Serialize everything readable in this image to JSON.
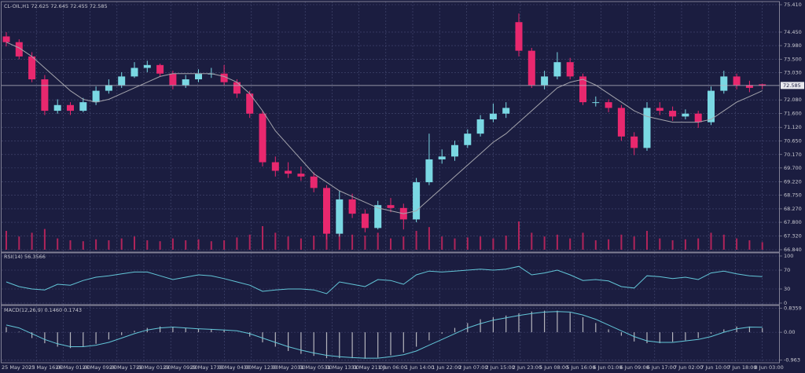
{
  "chart_data": {
    "type": "candlestick",
    "symbol": "CL-OIL,H1",
    "ohlc": [
      [
        74.3,
        74.45,
        73.95,
        74.1
      ],
      [
        74.1,
        74.2,
        73.5,
        73.6
      ],
      [
        73.6,
        73.75,
        72.7,
        72.8
      ],
      [
        72.8,
        72.95,
        71.55,
        71.7
      ],
      [
        71.7,
        72.1,
        71.6,
        71.9
      ],
      [
        71.9,
        72.0,
        71.55,
        71.7
      ],
      [
        71.7,
        72.15,
        71.65,
        72.0
      ],
      [
        72.0,
        72.55,
        71.9,
        72.4
      ],
      [
        72.4,
        72.8,
        72.3,
        72.6
      ],
      [
        72.6,
        73.05,
        72.5,
        72.9
      ],
      [
        72.9,
        73.4,
        72.85,
        73.2
      ],
      [
        73.2,
        73.45,
        73.05,
        73.3
      ],
      [
        73.3,
        73.35,
        72.9,
        73.0
      ],
      [
        73.0,
        73.1,
        72.45,
        72.6
      ],
      [
        72.6,
        72.95,
        72.5,
        72.8
      ],
      [
        72.8,
        73.15,
        72.7,
        73.0
      ],
      [
        73.0,
        73.2,
        72.85,
        73.0
      ],
      [
        73.0,
        73.3,
        72.6,
        72.7
      ],
      [
        72.7,
        72.8,
        72.15,
        72.3
      ],
      [
        72.3,
        72.4,
        71.45,
        71.6
      ],
      [
        71.6,
        71.7,
        69.75,
        69.9
      ],
      [
        69.9,
        70.1,
        69.4,
        69.6
      ],
      [
        69.6,
        69.9,
        69.35,
        69.5
      ],
      [
        69.5,
        69.75,
        69.25,
        69.4
      ],
      [
        69.4,
        69.55,
        68.85,
        69.0
      ],
      [
        69.0,
        69.1,
        67.2,
        67.4
      ],
      [
        67.4,
        68.9,
        67.3,
        68.6
      ],
      [
        68.6,
        68.8,
        67.95,
        68.1
      ],
      [
        68.1,
        68.25,
        67.45,
        67.6
      ],
      [
        67.6,
        68.55,
        67.55,
        68.4
      ],
      [
        68.4,
        68.65,
        68.15,
        68.3
      ],
      [
        68.3,
        68.45,
        67.55,
        67.9
      ],
      [
        67.9,
        69.35,
        67.8,
        69.2
      ],
      [
        69.2,
        70.9,
        69.1,
        70.0
      ],
      [
        70.0,
        70.35,
        69.85,
        70.1
      ],
      [
        70.1,
        70.65,
        69.95,
        70.5
      ],
      [
        70.5,
        71.05,
        70.4,
        70.9
      ],
      [
        70.9,
        71.55,
        70.8,
        71.4
      ],
      [
        71.4,
        71.95,
        71.3,
        71.6
      ],
      [
        71.6,
        72.0,
        71.45,
        71.8
      ],
      [
        74.8,
        75.1,
        73.6,
        73.8
      ],
      [
        73.8,
        73.9,
        72.5,
        72.6
      ],
      [
        72.6,
        73.1,
        72.45,
        72.9
      ],
      [
        72.9,
        73.75,
        72.8,
        73.4
      ],
      [
        73.4,
        73.55,
        72.8,
        72.9
      ],
      [
        72.9,
        73.0,
        71.9,
        72.0
      ],
      [
        72.0,
        72.2,
        71.85,
        72.0
      ],
      [
        72.0,
        72.1,
        71.65,
        71.8
      ],
      [
        71.8,
        71.9,
        70.65,
        70.8
      ],
      [
        70.8,
        70.95,
        70.15,
        70.4
      ],
      [
        70.4,
        72.0,
        70.3,
        71.8
      ],
      [
        71.8,
        72.0,
        71.55,
        71.7
      ],
      [
        71.7,
        71.85,
        71.35,
        71.5
      ],
      [
        71.5,
        71.75,
        71.4,
        71.6
      ],
      [
        71.6,
        71.7,
        71.1,
        71.3
      ],
      [
        71.3,
        72.55,
        71.2,
        72.4
      ],
      [
        72.4,
        73.1,
        72.3,
        72.9
      ],
      [
        72.9,
        73.0,
        72.45,
        72.6
      ],
      [
        72.6,
        72.75,
        72.35,
        72.5
      ],
      [
        72.625,
        72.645,
        72.455,
        72.585
      ]
    ],
    "colors": {
      "up": "#7ad8e3",
      "down": "#e8286e"
    },
    "ylim": [
      66.84,
      75.41
    ],
    "yticks": [
      {
        "value": 75.41,
        "label": "75.410"
      },
      {
        "value": 74.45,
        "label": "74.450"
      },
      {
        "value": 73.98,
        "label": "73.980"
      },
      {
        "value": 73.5,
        "label": "73.500"
      },
      {
        "value": 73.03,
        "label": "73.030"
      },
      {
        "value": 72.08,
        "label": "72.080"
      },
      {
        "value": 71.6,
        "label": "71.600"
      },
      {
        "value": 71.12,
        "label": "71.120"
      },
      {
        "value": 70.65,
        "label": "70.650"
      },
      {
        "value": 70.17,
        "label": "70.170"
      },
      {
        "value": 69.7,
        "label": "69.700"
      },
      {
        "value": 69.22,
        "label": "69.220"
      },
      {
        "value": 68.75,
        "label": "68.750"
      },
      {
        "value": 68.27,
        "label": "68.270"
      },
      {
        "value": 67.8,
        "label": "67.800"
      },
      {
        "value": 67.32,
        "label": "67.320"
      },
      {
        "value": 66.84,
        "label": "66.840"
      }
    ],
    "last_price": 72.585,
    "grid": true,
    "ma": {
      "color": "#a4a4ac",
      "values": [
        74.1,
        73.9,
        73.6,
        73.2,
        72.8,
        72.4,
        72.1,
        72.0,
        72.1,
        72.3,
        72.5,
        72.7,
        72.9,
        73.0,
        73.0,
        73.0,
        73.0,
        72.9,
        72.7,
        72.3,
        71.7,
        71.0,
        70.5,
        70.0,
        69.5,
        69.2,
        68.9,
        68.7,
        68.5,
        68.3,
        68.2,
        68.1,
        68.2,
        68.6,
        69.0,
        69.4,
        69.8,
        70.2,
        70.6,
        70.9,
        71.3,
        71.7,
        72.1,
        72.5,
        72.7,
        72.8,
        72.6,
        72.3,
        72.0,
        71.7,
        71.5,
        71.4,
        71.3,
        71.3,
        71.3,
        71.4,
        71.7,
        72.0,
        72.2,
        72.4
      ]
    },
    "volume": {
      "color": "#b0245a",
      "values": [
        20,
        14,
        18,
        22,
        12,
        10,
        9,
        11,
        10,
        12,
        14,
        10,
        9,
        12,
        10,
        11,
        9,
        10,
        13,
        16,
        25,
        18,
        14,
        12,
        15,
        28,
        22,
        16,
        15,
        18,
        12,
        14,
        20,
        24,
        14,
        12,
        13,
        14,
        12,
        15,
        30,
        18,
        14,
        16,
        12,
        18,
        10,
        11,
        16,
        14,
        20,
        12,
        10,
        11,
        12,
        18,
        16,
        12,
        10,
        8
      ]
    },
    "time_labels": [
      "25 May 2023",
      "25 May 16:00",
      "26 May 01:00",
      "26 May 09:00",
      "26 May 17:00",
      "29 May 01:00",
      "29 May 09:00",
      "29 May 17:00",
      "30 May 04:00",
      "30 May 12:00",
      "30 May 20:00",
      "31 May 05:00",
      "31 May 13:00",
      "31 May 21:00",
      "1 Jun 06:00",
      "1 Jun 14:00",
      "1 Jun 22:00",
      "2 Jun 07:00",
      "2 Jun 15:00",
      "2 Jun 23:00",
      "5 Jun 08:00",
      "5 Jun 16:00",
      "6 Jun 01:00",
      "6 Jun 09:00",
      "6 Jun 17:00",
      "7 Jun 02:00",
      "7 Jun 10:00",
      "7 Jun 18:00",
      "8 Jun 03:00"
    ],
    "rsi": {
      "name": "RSI(14)",
      "color": "#63c6d8",
      "ylim": [
        0,
        100
      ],
      "yticks": [
        100,
        70,
        30,
        0
      ],
      "values": [
        45,
        35,
        30,
        28,
        40,
        38,
        48,
        55,
        58,
        62,
        66,
        66,
        58,
        50,
        55,
        60,
        58,
        52,
        45,
        38,
        25,
        28,
        30,
        30,
        28,
        20,
        45,
        40,
        35,
        50,
        48,
        40,
        60,
        68,
        66,
        68,
        70,
        72,
        70,
        72,
        78,
        60,
        64,
        70,
        60,
        48,
        50,
        47,
        35,
        32,
        58,
        56,
        52,
        55,
        50,
        64,
        68,
        62,
        58,
        56.3566
      ]
    },
    "macd": {
      "name": "MACD(12,26,9)",
      "header_labels": [
        "0.1460",
        "0.1743"
      ],
      "main_color": "#b4b4bc",
      "signal_color": "#63c6d8",
      "ylim": [
        -1.06,
        0.93
      ],
      "yticks": [
        0.8359,
        {
          "value": 0,
          "label": "0.00"
        },
        -0.963
      ],
      "main": [
        0.18,
        0.02,
        -0.2,
        -0.38,
        -0.5,
        -0.55,
        -0.5,
        -0.4,
        -0.25,
        -0.1,
        0.05,
        0.15,
        0.2,
        0.18,
        0.14,
        0.12,
        0.1,
        0.07,
        0.0,
        -0.15,
        -0.35,
        -0.5,
        -0.65,
        -0.75,
        -0.82,
        -0.9,
        -0.9,
        -0.9,
        -0.92,
        -0.88,
        -0.8,
        -0.7,
        -0.5,
        -0.28,
        -0.05,
        0.15,
        0.32,
        0.45,
        0.52,
        0.58,
        0.66,
        0.72,
        0.75,
        0.75,
        0.68,
        0.52,
        0.32,
        0.1,
        -0.12,
        -0.32,
        -0.38,
        -0.38,
        -0.33,
        -0.28,
        -0.2,
        -0.05,
        0.1,
        0.2,
        0.2,
        0.146
      ],
      "signal": [
        0.25,
        0.15,
        -0.05,
        -0.25,
        -0.4,
        -0.5,
        -0.5,
        -0.45,
        -0.35,
        -0.2,
        -0.05,
        0.08,
        0.15,
        0.18,
        0.15,
        0.12,
        0.1,
        0.08,
        0.05,
        -0.05,
        -0.2,
        -0.35,
        -0.5,
        -0.62,
        -0.72,
        -0.8,
        -0.85,
        -0.88,
        -0.9,
        -0.9,
        -0.85,
        -0.78,
        -0.65,
        -0.45,
        -0.25,
        -0.05,
        0.15,
        0.3,
        0.42,
        0.5,
        0.58,
        0.65,
        0.7,
        0.72,
        0.7,
        0.6,
        0.45,
        0.25,
        0.05,
        -0.15,
        -0.3,
        -0.35,
        -0.35,
        -0.3,
        -0.25,
        -0.15,
        0.0,
        0.12,
        0.18,
        0.1743
      ]
    }
  }
}
